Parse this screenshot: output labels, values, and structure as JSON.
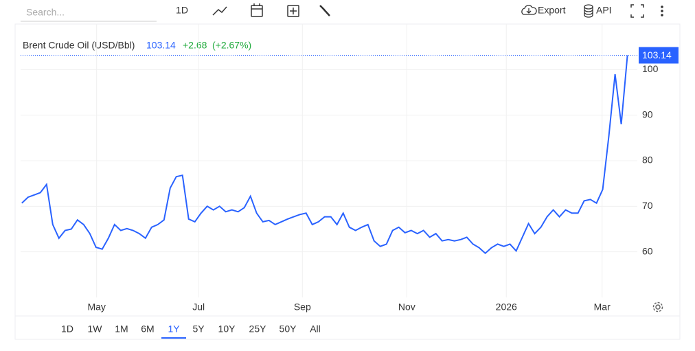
{
  "toolbar": {
    "search_placeholder": "Search...",
    "interval": "1D",
    "export": "Export",
    "api": "API"
  },
  "chart_data": {
    "type": "line",
    "legend": {
      "change": "+2.68",
      "change_pct": "(+2.67%)"
    },
    "series": [
      {
        "name": "Brent Crude Oil (USD/Bbl)",
        "color": "#2962ff",
        "values": [
          70.7,
          72,
          72.5,
          73,
          74.8,
          66,
          63,
          64.7,
          65,
          67,
          66,
          64,
          61,
          60.6,
          63,
          66,
          64.7,
          65.1,
          64.7,
          64,
          63,
          65.4,
          66,
          67,
          74,
          76.5,
          76.8,
          67.2,
          66.6,
          68.5,
          70,
          69.2,
          70,
          68.8,
          69.2,
          68.8,
          69.7,
          72.2,
          68.5,
          66.6,
          66.9,
          66,
          66.6,
          67.2,
          67.7,
          68.2,
          68.5,
          66,
          66.6,
          67.7,
          67.7,
          66,
          68.5,
          65.4,
          64.7,
          65.4,
          66,
          62.4,
          61.2,
          61.7,
          64.7,
          65.4,
          64.2,
          64.7,
          64,
          64.7,
          63.2,
          64,
          62.4,
          62.7,
          62.4,
          62.7,
          63.2,
          61.7,
          60.9,
          59.7,
          60.9,
          61.7,
          61.2,
          61.7,
          60.2,
          63.2,
          66.2,
          64,
          65.4,
          67.7,
          69.2,
          67.7,
          69.2,
          68.5,
          68.5,
          71.2,
          71.5,
          70.7,
          73.7,
          85.5,
          99,
          88,
          103.14
        ]
      }
    ],
    "xlim": [
      -0.2,
      99.6
    ],
    "xticks": [
      {
        "value": 12.1,
        "label": "May"
      },
      {
        "value": 28.6,
        "label": "Jul"
      },
      {
        "value": 45.4,
        "label": "Sep"
      },
      {
        "value": 62.3,
        "label": "Nov"
      },
      {
        "value": 78.4,
        "label": "2026"
      },
      {
        "value": 93.9,
        "label": "Mar"
      }
    ],
    "ylim": [
      50,
      110
    ],
    "yticks": [
      60,
      70,
      80,
      90,
      100
    ],
    "grid": true
  },
  "range_selector": {
    "options": [
      "1D",
      "1W",
      "1M",
      "6M",
      "1Y",
      "5Y",
      "10Y",
      "25Y",
      "50Y",
      "All"
    ],
    "selected": "1Y"
  }
}
